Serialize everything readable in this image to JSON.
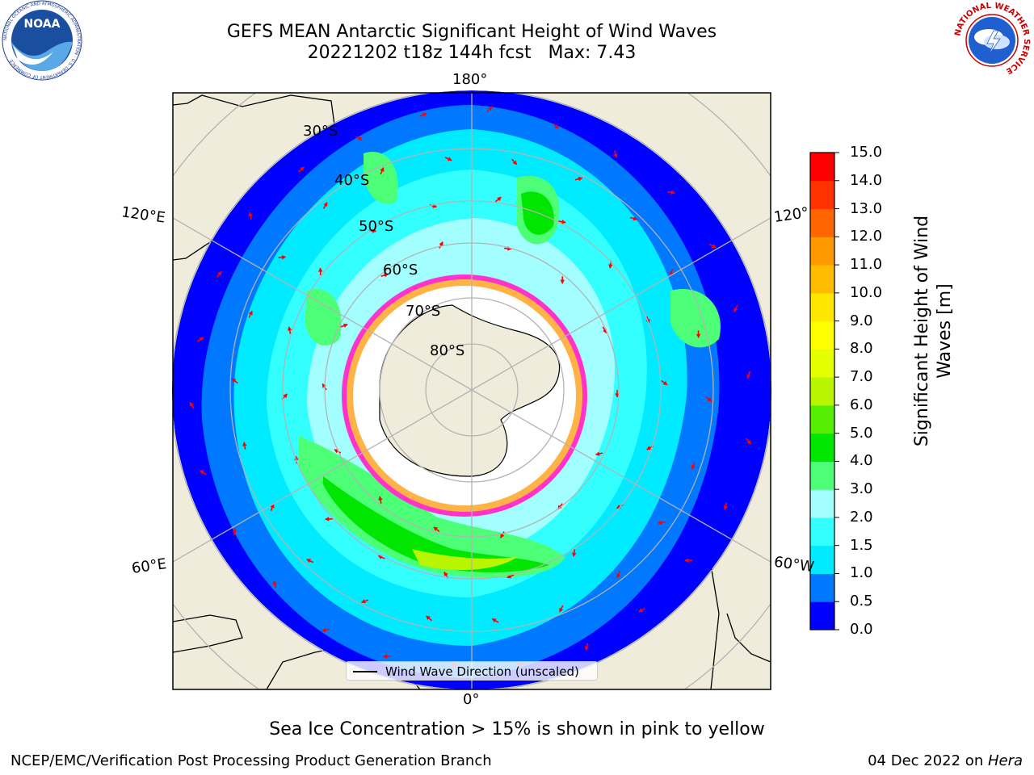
{
  "header": {
    "title_line1": "GEFS MEAN Antarctic Significant Height of Wind Waves",
    "title_line2": "20221202 t18z 144h fcst   Max: 7.43"
  },
  "logos": {
    "noaa_text": "NOAA",
    "noaa_ring_text": "NATIONAL OCEANIC AND ATMOSPHERIC ADMINISTRATION · U.S. DEPARTMENT OF COMMERCE",
    "nws_ring_text": "NATIONAL WEATHER SERVICE"
  },
  "map": {
    "lon_labels": {
      "top": "180°",
      "bottom": "0°",
      "left_upper": "120°E",
      "left_lower": "60°E",
      "right_upper": "120°",
      "right_lower": "60°W"
    },
    "lat_labels": [
      "30°S",
      "40°S",
      "50°S",
      "60°S",
      "70°S",
      "80°S"
    ],
    "legend_label": "Wind Wave Direction (unscaled)"
  },
  "colorbar": {
    "label_line1": "Significant Height of Wind",
    "label_line2": "Waves [m]",
    "ticks": [
      "0.0",
      "0.5",
      "1.0",
      "1.5",
      "2.0",
      "3.0",
      "4.0",
      "5.0",
      "6.0",
      "7.0",
      "8.0",
      "9.0",
      "10.0",
      "11.0",
      "12.0",
      "13.0",
      "14.0",
      "15.0"
    ],
    "colors": [
      "#0000ff",
      "#0078ff",
      "#00ebff",
      "#33ffff",
      "#a3ffff",
      "#4dff77",
      "#00e600",
      "#55ee00",
      "#b9f500",
      "#e3ff00",
      "#ffff00",
      "#ffe600",
      "#ffbb00",
      "#ff9900",
      "#ff6600",
      "#ff3300",
      "#ff0000"
    ]
  },
  "notes": {
    "sea_ice": "Sea Ice Concentration > 15% is shown in pink to yellow"
  },
  "footer": {
    "left": "NCEP/EMC/Verification Post Processing Product Generation Branch",
    "right_prefix": "04 Dec 2022 on ",
    "right_host": "Hera"
  },
  "colors": {
    "land": "#efecdc",
    "ocean_deep": "#0000ff",
    "arrow": "#ff0000",
    "ice_edge": "#ff33cc"
  }
}
